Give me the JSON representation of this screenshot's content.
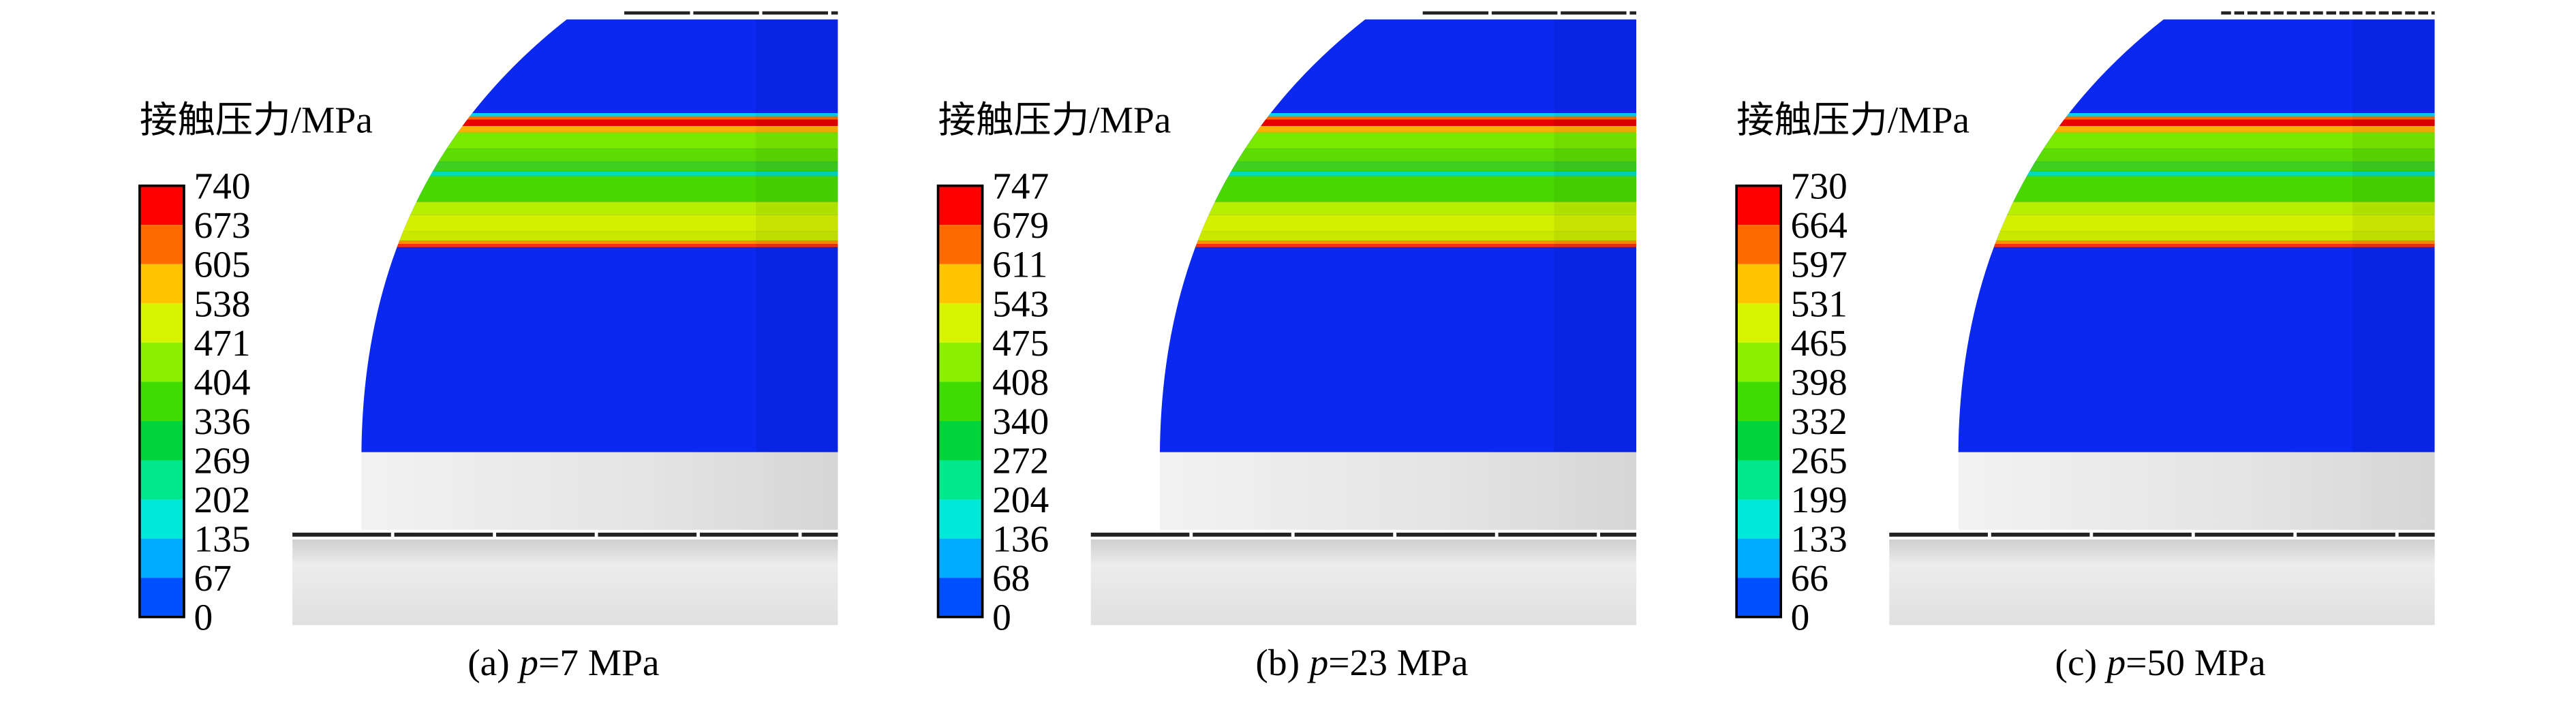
{
  "legend_colors": [
    "#ff0000",
    "#ff6a00",
    "#ffc400",
    "#d8f500",
    "#8cef00",
    "#3edc00",
    "#00d43a",
    "#00e88c",
    "#00e8d8",
    "#00aaff",
    "#0050ff"
  ],
  "panels": [
    {
      "legend_title": "接触压力/MPa",
      "legend_labels": [
        740,
        673,
        605,
        538,
        471,
        404,
        336,
        269,
        202,
        135,
        67,
        0
      ],
      "caption": {
        "label": "(a)",
        "variable": "p",
        "value": "=7 MPa"
      }
    },
    {
      "legend_title": "接触压力/MPa",
      "legend_labels": [
        747,
        679,
        611,
        543,
        475,
        408,
        340,
        272,
        204,
        136,
        68,
        0
      ],
      "caption": {
        "label": "(b)",
        "variable": "p",
        "value": "=23 MPa"
      }
    },
    {
      "legend_title": "接触压力/MPa",
      "legend_labels": [
        730,
        664,
        597,
        531,
        465,
        398,
        332,
        265,
        199,
        133,
        66,
        0
      ],
      "caption": {
        "label": "(c)",
        "variable": "p",
        "value": "=50 MPa"
      }
    }
  ]
}
